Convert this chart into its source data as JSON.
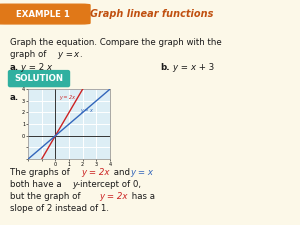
{
  "bg_color": "#fcf8e8",
  "header_bg": "#f5edcc",
  "badge_color": "#e07818",
  "badge_text": "EXAMPLE 1",
  "header_title": "Graph linear functions",
  "header_title_color": "#c05010",
  "body_color": "#1a1a1a",
  "solution_bg": "#30b0a0",
  "solution_text": "SOLUTION",
  "solution_fg": "#ffffff",
  "graph_bg": "#ddeef5",
  "graph_grid_color": "#b8d8e8",
  "graph_xlim": [
    -2,
    4
  ],
  "graph_ylim": [
    -2,
    4
  ],
  "line_y2x_color": "#cc2222",
  "line_yx_color": "#3366bb",
  "line_width": 1.0
}
